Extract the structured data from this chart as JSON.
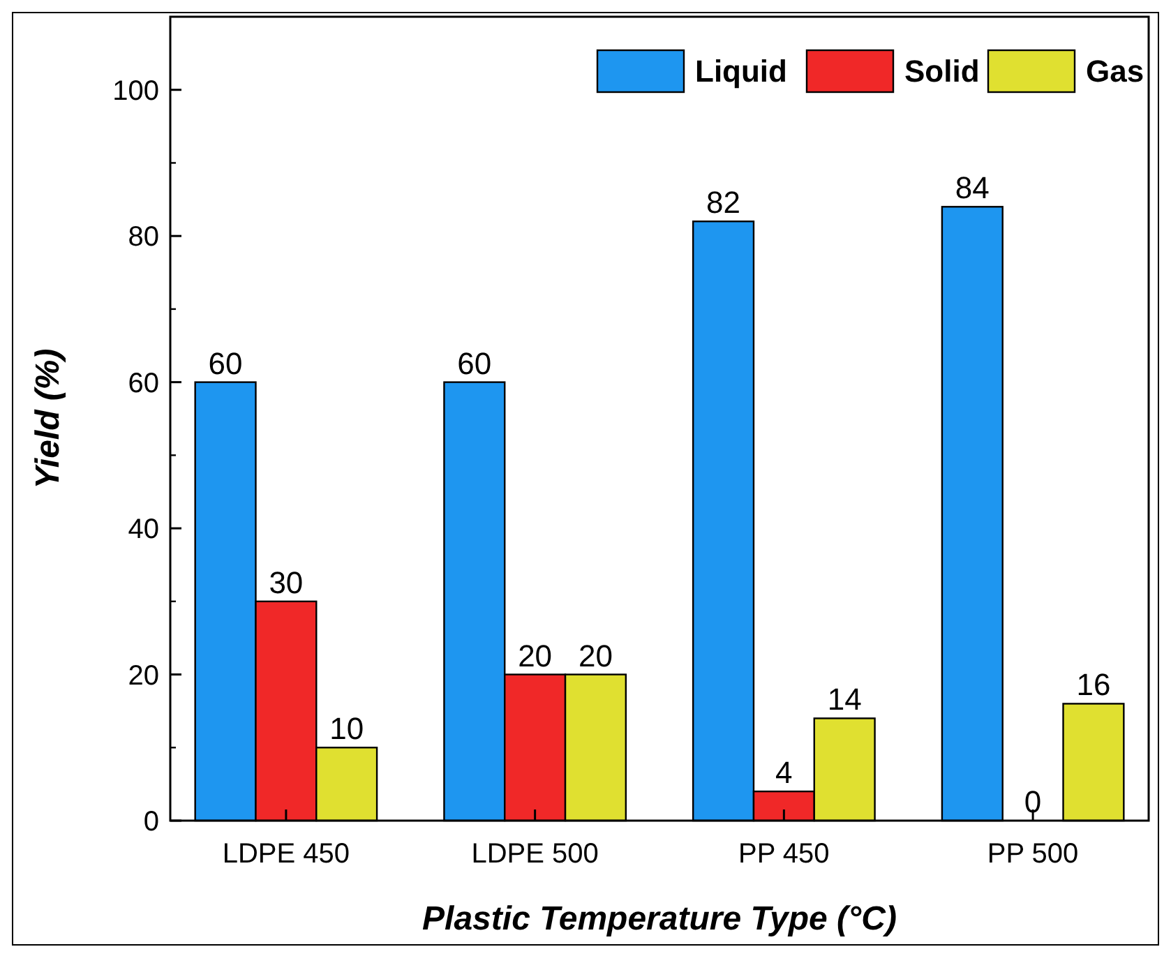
{
  "chart_data": {
    "type": "bar",
    "xlabel": "Plastic Temperature Type (°C)",
    "ylabel": "Yield (%)",
    "categories": [
      "LDPE 450",
      "LDPE 500",
      "PP 450",
      "PP 500"
    ],
    "series": [
      {
        "name": "Liquid",
        "color": "#1e96f0",
        "values": [
          60,
          60,
          82,
          84
        ]
      },
      {
        "name": "Solid",
        "color": "#f02828",
        "values": [
          30,
          20,
          4,
          0
        ]
      },
      {
        "name": "Gas",
        "color": "#e0e030",
        "values": [
          10,
          20,
          14,
          16
        ]
      }
    ],
    "ylim": [
      0,
      110
    ],
    "yticks": [
      0,
      20,
      40,
      60,
      80,
      100
    ],
    "data_labels": true,
    "legend": "top right",
    "grid": false
  }
}
